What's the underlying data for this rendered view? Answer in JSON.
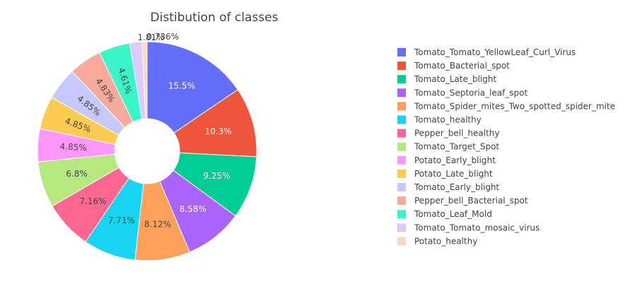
{
  "chart_data": {
    "type": "pie",
    "title": "Distibution of classes",
    "hole": true,
    "legend_position": "right",
    "sort": "descending",
    "direction": "clockwise",
    "slices": [
      {
        "label": "Tomato_Tomato_YellowLeaf_Curl_Virus",
        "percent": 15.5,
        "percent_text": "15.5%",
        "color": "#636efa"
      },
      {
        "label": "Tomato_Bacterial_spot",
        "percent": 10.3,
        "percent_text": "10.3%",
        "color": "#ef553b"
      },
      {
        "label": "Tomato_Late_blight",
        "percent": 9.25,
        "percent_text": "9.25%",
        "color": "#00cc96"
      },
      {
        "label": "Tomato_Septoria_leaf_spot",
        "percent": 8.58,
        "percent_text": "8.58%",
        "color": "#ab63fa"
      },
      {
        "label": "Tomato_Spider_mites_Two_spotted_spider_mite",
        "percent": 8.12,
        "percent_text": "8.12%",
        "color": "#ffa15a"
      },
      {
        "label": "Tomato_healthy",
        "percent": 7.71,
        "percent_text": "7.71%",
        "color": "#19d3f3"
      },
      {
        "label": "Pepper_bell_healthy",
        "percent": 7.16,
        "percent_text": "7.16%",
        "color": "#ff6692"
      },
      {
        "label": "Tomato_Target_Spot",
        "percent": 6.8,
        "percent_text": "6.8%",
        "color": "#b6e880"
      },
      {
        "label": "Potato_Early_blight",
        "percent": 4.85,
        "percent_text": "4.85%",
        "color": "#ff97ff"
      },
      {
        "label": "Potato_Late_blight",
        "percent": 4.85,
        "percent_text": "4.85%",
        "color": "#fecb52"
      },
      {
        "label": "Tomato_Early_blight",
        "percent": 4.85,
        "percent_text": "4.85%",
        "color": "#c6c9fa"
      },
      {
        "label": "Pepper_bell_Bacterial_spot",
        "percent": 4.83,
        "percent_text": "4.83%",
        "color": "#f7a99c"
      },
      {
        "label": "Tomato_Leaf_Mold",
        "percent": 4.61,
        "percent_text": "4.61%",
        "color": "#3af5c8"
      },
      {
        "label": "Tomato_Tomato_mosaic_virus",
        "percent": 1.81,
        "percent_text": "1.81%",
        "color": "#dccbf8"
      },
      {
        "label": "Potato_healthy",
        "percent": 0.736,
        "percent_text": "0.736%",
        "color": "#fed9bf"
      }
    ]
  }
}
